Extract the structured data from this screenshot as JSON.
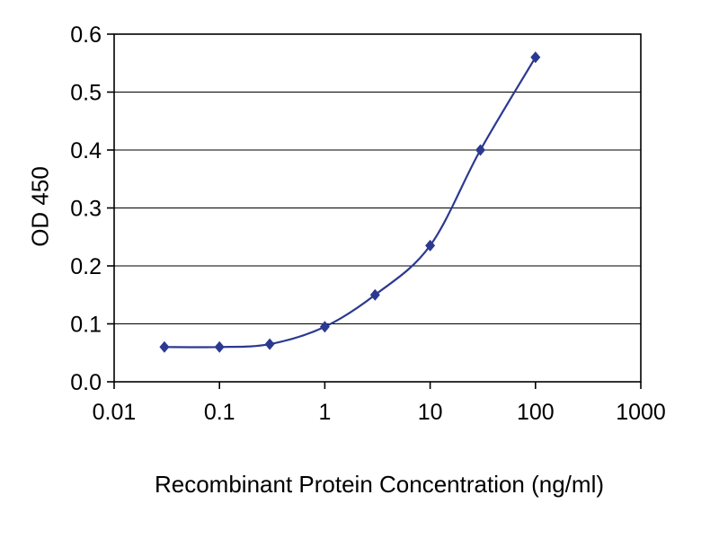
{
  "chart_data": {
    "type": "line",
    "title": "",
    "xlabel": "Recombinant Protein Concentration (ng/ml)",
    "ylabel": "OD 450",
    "x_scale": "log",
    "xlim": [
      0.01,
      1000
    ],
    "ylim": [
      0,
      0.6
    ],
    "x_ticks": [
      0.01,
      0.1,
      1,
      10,
      100,
      1000
    ],
    "x_tick_labels": [
      "0.01",
      "0.1",
      "1",
      "10",
      "100",
      "1000"
    ],
    "y_ticks": [
      0,
      0.1,
      0.2,
      0.3,
      0.4,
      0.5,
      0.6
    ],
    "y_tick_labels": [
      "0.0",
      "0.1",
      "0.2",
      "0.3",
      "0.4",
      "0.5",
      "0.6"
    ],
    "grid": "horizontal",
    "legend": "none",
    "series": [
      {
        "name": "OD 450",
        "marker": "diamond",
        "color": "#2b3990",
        "x": [
          0.03,
          0.1,
          0.3,
          1,
          3,
          10,
          30,
          100
        ],
        "y": [
          0.06,
          0.06,
          0.065,
          0.095,
          0.15,
          0.235,
          0.4,
          0.56
        ]
      }
    ]
  },
  "colors": {
    "axis": "#000000",
    "grid": "#000000",
    "background": "#ffffff"
  }
}
